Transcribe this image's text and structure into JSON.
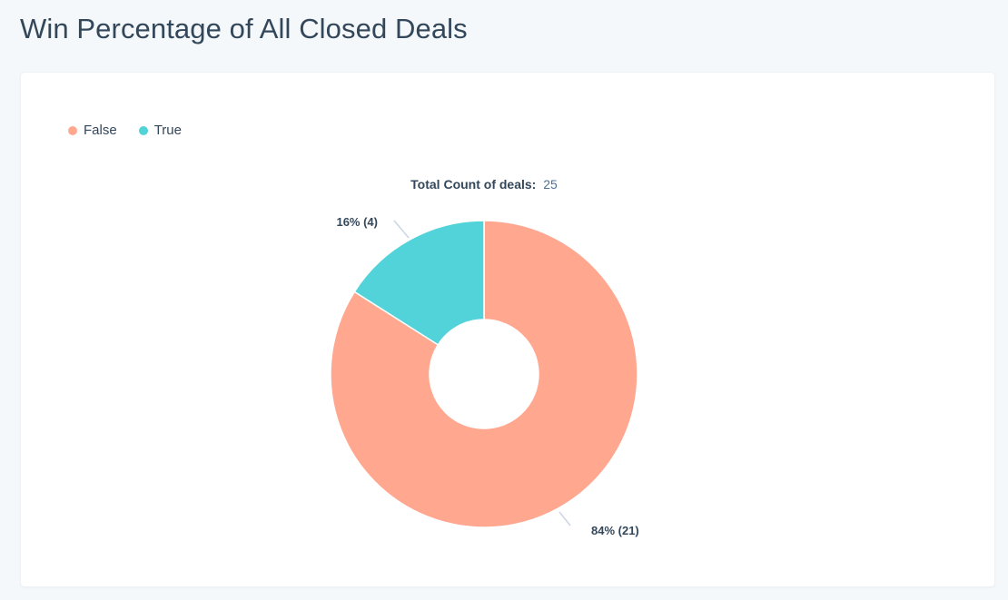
{
  "page": {
    "title": "Win Percentage of All Closed Deals"
  },
  "chart_data": {
    "type": "pie",
    "donut": true,
    "title": "Total Count of deals:",
    "total_label": "Total Count of deals:",
    "total_value": "25",
    "legend_position": "top-left",
    "categories": [
      "False",
      "True"
    ],
    "values": [
      21,
      4
    ],
    "percentages": [
      84,
      16
    ],
    "data_labels": [
      "84% (21)",
      "16% (4)"
    ],
    "colors": [
      "#ffa78f",
      "#51d3d9"
    ]
  }
}
